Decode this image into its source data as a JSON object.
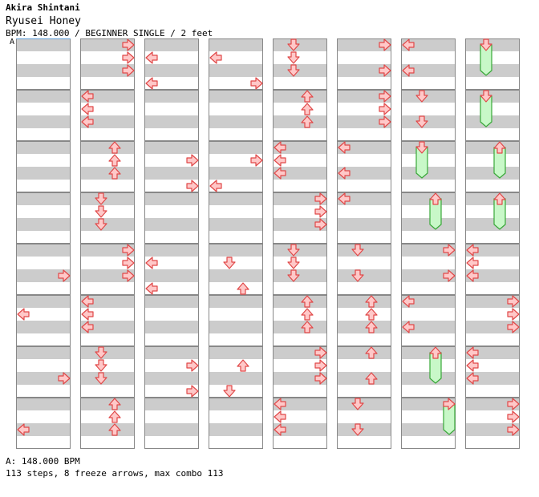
{
  "header": {
    "artist": "Akira Shintani",
    "title": "Ryusei Honey",
    "meta": "BPM: 148.000 / BEGINNER SINGLE / 2 feet",
    "marker": "A"
  },
  "footer": {
    "bpm": "A: 148.000 BPM",
    "stats": "113 steps, 8 freeze arrows, max combo 113"
  },
  "colors": {
    "stripe": "#cccccc",
    "border": "#888888",
    "arrow_fill": "#ffc8c8",
    "arrow_stroke": "#e04848",
    "freeze_fill": "#c8f8c8",
    "freeze_stroke": "#38a838",
    "bpm_line": "#5b9bd5"
  },
  "chart": {
    "columns": 8,
    "measures_per_column": 8,
    "lanes": [
      "left",
      "down",
      "up",
      "right"
    ],
    "notes": [
      {
        "c": 0,
        "m": 4,
        "r": 2,
        "d": "R"
      },
      {
        "c": 0,
        "m": 5,
        "r": 1,
        "d": "L"
      },
      {
        "c": 0,
        "m": 6,
        "r": 2,
        "d": "R"
      },
      {
        "c": 0,
        "m": 7,
        "r": 2,
        "d": "L"
      },
      {
        "c": 1,
        "m": 0,
        "r": 0,
        "d": "R"
      },
      {
        "c": 1,
        "m": 0,
        "r": 1,
        "d": "R"
      },
      {
        "c": 1,
        "m": 0,
        "r": 2,
        "d": "R"
      },
      {
        "c": 1,
        "m": 1,
        "r": 0,
        "d": "L"
      },
      {
        "c": 1,
        "m": 1,
        "r": 1,
        "d": "L"
      },
      {
        "c": 1,
        "m": 1,
        "r": 2,
        "d": "L"
      },
      {
        "c": 1,
        "m": 2,
        "r": 0,
        "d": "U"
      },
      {
        "c": 1,
        "m": 2,
        "r": 1,
        "d": "U"
      },
      {
        "c": 1,
        "m": 2,
        "r": 2,
        "d": "U"
      },
      {
        "c": 1,
        "m": 3,
        "r": 0,
        "d": "D"
      },
      {
        "c": 1,
        "m": 3,
        "r": 1,
        "d": "D"
      },
      {
        "c": 1,
        "m": 3,
        "r": 2,
        "d": "D"
      },
      {
        "c": 1,
        "m": 4,
        "r": 0,
        "d": "R"
      },
      {
        "c": 1,
        "m": 4,
        "r": 1,
        "d": "R"
      },
      {
        "c": 1,
        "m": 4,
        "r": 2,
        "d": "R"
      },
      {
        "c": 1,
        "m": 5,
        "r": 0,
        "d": "L"
      },
      {
        "c": 1,
        "m": 5,
        "r": 1,
        "d": "L"
      },
      {
        "c": 1,
        "m": 5,
        "r": 2,
        "d": "L"
      },
      {
        "c": 1,
        "m": 6,
        "r": 0,
        "d": "D"
      },
      {
        "c": 1,
        "m": 6,
        "r": 1,
        "d": "D"
      },
      {
        "c": 1,
        "m": 6,
        "r": 2,
        "d": "D"
      },
      {
        "c": 1,
        "m": 7,
        "r": 0,
        "d": "U"
      },
      {
        "c": 1,
        "m": 7,
        "r": 1,
        "d": "U"
      },
      {
        "c": 1,
        "m": 7,
        "r": 2,
        "d": "U"
      },
      {
        "c": 2,
        "m": 0,
        "r": 1,
        "d": "L"
      },
      {
        "c": 2,
        "m": 0,
        "r": 3,
        "d": "L"
      },
      {
        "c": 2,
        "m": 2,
        "r": 1,
        "d": "R"
      },
      {
        "c": 2,
        "m": 2,
        "r": 3,
        "d": "R"
      },
      {
        "c": 2,
        "m": 4,
        "r": 1,
        "d": "L"
      },
      {
        "c": 2,
        "m": 4,
        "r": 3,
        "d": "L"
      },
      {
        "c": 2,
        "m": 6,
        "r": 1,
        "d": "R"
      },
      {
        "c": 2,
        "m": 6,
        "r": 3,
        "d": "R"
      },
      {
        "c": 3,
        "m": 0,
        "r": 1,
        "d": "L"
      },
      {
        "c": 3,
        "m": 0,
        "r": 3,
        "d": "R"
      },
      {
        "c": 3,
        "m": 2,
        "r": 1,
        "d": "R"
      },
      {
        "c": 3,
        "m": 2,
        "r": 3,
        "d": "L"
      },
      {
        "c": 3,
        "m": 4,
        "r": 1,
        "d": "D"
      },
      {
        "c": 3,
        "m": 4,
        "r": 3,
        "d": "U"
      },
      {
        "c": 3,
        "m": 6,
        "r": 1,
        "d": "U"
      },
      {
        "c": 3,
        "m": 6,
        "r": 3,
        "d": "D"
      },
      {
        "c": 4,
        "m": 0,
        "r": 0,
        "d": "D"
      },
      {
        "c": 4,
        "m": 0,
        "r": 1,
        "d": "D"
      },
      {
        "c": 4,
        "m": 0,
        "r": 2,
        "d": "D"
      },
      {
        "c": 4,
        "m": 1,
        "r": 0,
        "d": "U"
      },
      {
        "c": 4,
        "m": 1,
        "r": 1,
        "d": "U"
      },
      {
        "c": 4,
        "m": 1,
        "r": 2,
        "d": "U"
      },
      {
        "c": 4,
        "m": 2,
        "r": 0,
        "d": "L"
      },
      {
        "c": 4,
        "m": 2,
        "r": 1,
        "d": "L"
      },
      {
        "c": 4,
        "m": 2,
        "r": 2,
        "d": "L"
      },
      {
        "c": 4,
        "m": 3,
        "r": 0,
        "d": "R"
      },
      {
        "c": 4,
        "m": 3,
        "r": 1,
        "d": "R"
      },
      {
        "c": 4,
        "m": 3,
        "r": 2,
        "d": "R"
      },
      {
        "c": 4,
        "m": 4,
        "r": 0,
        "d": "D"
      },
      {
        "c": 4,
        "m": 4,
        "r": 1,
        "d": "D"
      },
      {
        "c": 4,
        "m": 4,
        "r": 2,
        "d": "D"
      },
      {
        "c": 4,
        "m": 5,
        "r": 0,
        "d": "U"
      },
      {
        "c": 4,
        "m": 5,
        "r": 1,
        "d": "U"
      },
      {
        "c": 4,
        "m": 5,
        "r": 2,
        "d": "U"
      },
      {
        "c": 4,
        "m": 6,
        "r": 0,
        "d": "R"
      },
      {
        "c": 4,
        "m": 6,
        "r": 1,
        "d": "R"
      },
      {
        "c": 4,
        "m": 6,
        "r": 2,
        "d": "R"
      },
      {
        "c": 4,
        "m": 7,
        "r": 0,
        "d": "L"
      },
      {
        "c": 4,
        "m": 7,
        "r": 1,
        "d": "L"
      },
      {
        "c": 4,
        "m": 7,
        "r": 2,
        "d": "L"
      },
      {
        "c": 5,
        "m": 0,
        "r": 0,
        "d": "R"
      },
      {
        "c": 5,
        "m": 0,
        "r": 2,
        "d": "R"
      },
      {
        "c": 5,
        "m": 1,
        "r": 0,
        "d": "R"
      },
      {
        "c": 5,
        "m": 1,
        "r": 1,
        "d": "R"
      },
      {
        "c": 5,
        "m": 1,
        "r": 2,
        "d": "R"
      },
      {
        "c": 5,
        "m": 2,
        "r": 0,
        "d": "L"
      },
      {
        "c": 5,
        "m": 2,
        "r": 2,
        "d": "L"
      },
      {
        "c": 5,
        "m": 3,
        "r": 0,
        "d": "L"
      },
      {
        "c": 5,
        "m": 4,
        "r": 0,
        "d": "D"
      },
      {
        "c": 5,
        "m": 4,
        "r": 2,
        "d": "D"
      },
      {
        "c": 5,
        "m": 5,
        "r": 0,
        "d": "U"
      },
      {
        "c": 5,
        "m": 5,
        "r": 1,
        "d": "U"
      },
      {
        "c": 5,
        "m": 5,
        "r": 2,
        "d": "U"
      },
      {
        "c": 5,
        "m": 6,
        "r": 0,
        "d": "U"
      },
      {
        "c": 5,
        "m": 6,
        "r": 2,
        "d": "U"
      },
      {
        "c": 5,
        "m": 7,
        "r": 0,
        "d": "D"
      },
      {
        "c": 5,
        "m": 7,
        "r": 2,
        "d": "D"
      },
      {
        "c": 6,
        "m": 0,
        "r": 0,
        "d": "L"
      },
      {
        "c": 6,
        "m": 0,
        "r": 2,
        "d": "L"
      },
      {
        "c": 6,
        "m": 1,
        "r": 0,
        "d": "D"
      },
      {
        "c": 6,
        "m": 1,
        "r": 2,
        "d": "D"
      },
      {
        "c": 6,
        "m": 2,
        "r": 0,
        "d": "D",
        "hold": 2
      },
      {
        "c": 6,
        "m": 3,
        "r": 0,
        "d": "U",
        "hold": 2
      },
      {
        "c": 6,
        "m": 4,
        "r": 0,
        "d": "R"
      },
      {
        "c": 6,
        "m": 4,
        "r": 2,
        "d": "R"
      },
      {
        "c": 6,
        "m": 5,
        "r": 0,
        "d": "L"
      },
      {
        "c": 6,
        "m": 5,
        "r": 2,
        "d": "L"
      },
      {
        "c": 6,
        "m": 6,
        "r": 0,
        "d": "U",
        "hold": 2
      },
      {
        "c": 6,
        "m": 7,
        "r": 0,
        "d": "R",
        "hold": 2
      },
      {
        "c": 7,
        "m": 0,
        "r": 0,
        "d": "D",
        "hold": 2
      },
      {
        "c": 7,
        "m": 1,
        "r": 0,
        "d": "D",
        "hold": 2
      },
      {
        "c": 7,
        "m": 2,
        "r": 0,
        "d": "U",
        "hold": 2
      },
      {
        "c": 7,
        "m": 3,
        "r": 0,
        "d": "U",
        "hold": 2
      },
      {
        "c": 7,
        "m": 4,
        "r": 0,
        "d": "L"
      },
      {
        "c": 7,
        "m": 4,
        "r": 1,
        "d": "L"
      },
      {
        "c": 7,
        "m": 4,
        "r": 2,
        "d": "L"
      },
      {
        "c": 7,
        "m": 5,
        "r": 0,
        "d": "R"
      },
      {
        "c": 7,
        "m": 5,
        "r": 1,
        "d": "R"
      },
      {
        "c": 7,
        "m": 5,
        "r": 2,
        "d": "R"
      },
      {
        "c": 7,
        "m": 6,
        "r": 0,
        "d": "L"
      },
      {
        "c": 7,
        "m": 6,
        "r": 1,
        "d": "L"
      },
      {
        "c": 7,
        "m": 6,
        "r": 2,
        "d": "L"
      },
      {
        "c": 7,
        "m": 7,
        "r": 0,
        "d": "R"
      },
      {
        "c": 7,
        "m": 7,
        "r": 1,
        "d": "R"
      },
      {
        "c": 7,
        "m": 7,
        "r": 2,
        "d": "R"
      }
    ]
  }
}
